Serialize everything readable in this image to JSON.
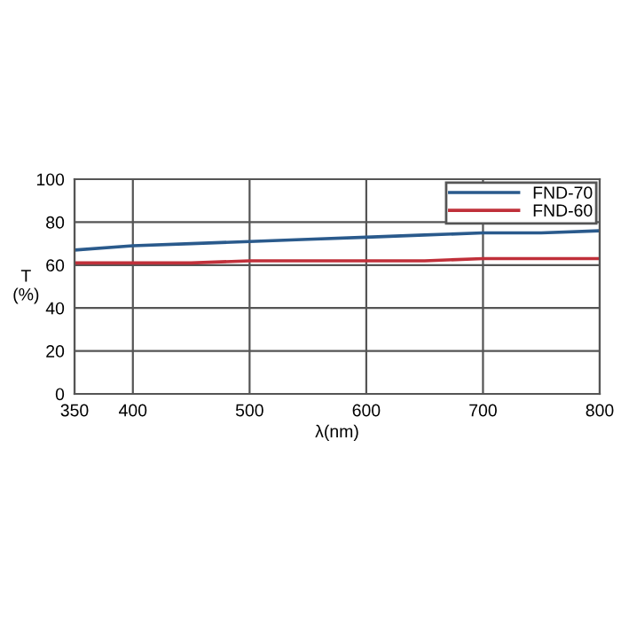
{
  "chart_data": {
    "type": "line",
    "xlabel": "λ(nm)",
    "ylabel": "T\n(%)",
    "x": [
      350,
      400,
      450,
      500,
      550,
      600,
      650,
      700,
      750,
      800
    ],
    "series": [
      {
        "name": "FND-70",
        "color": "#2a5a8c",
        "values": [
          67,
          69,
          70,
          71,
          72,
          73,
          74,
          75,
          75,
          76
        ]
      },
      {
        "name": "FND-60",
        "color": "#c0303a",
        "values": [
          61,
          61,
          61,
          62,
          62,
          62,
          62,
          63,
          63,
          63
        ]
      }
    ],
    "xlim": [
      350,
      800
    ],
    "xticks": [
      350,
      400,
      500,
      600,
      700,
      800
    ],
    "ylim": [
      0,
      100
    ],
    "yticks": [
      0,
      20,
      40,
      60,
      80,
      100
    ],
    "grid": true,
    "legend": "top right",
    "marker": "none",
    "line_style": "solid"
  }
}
